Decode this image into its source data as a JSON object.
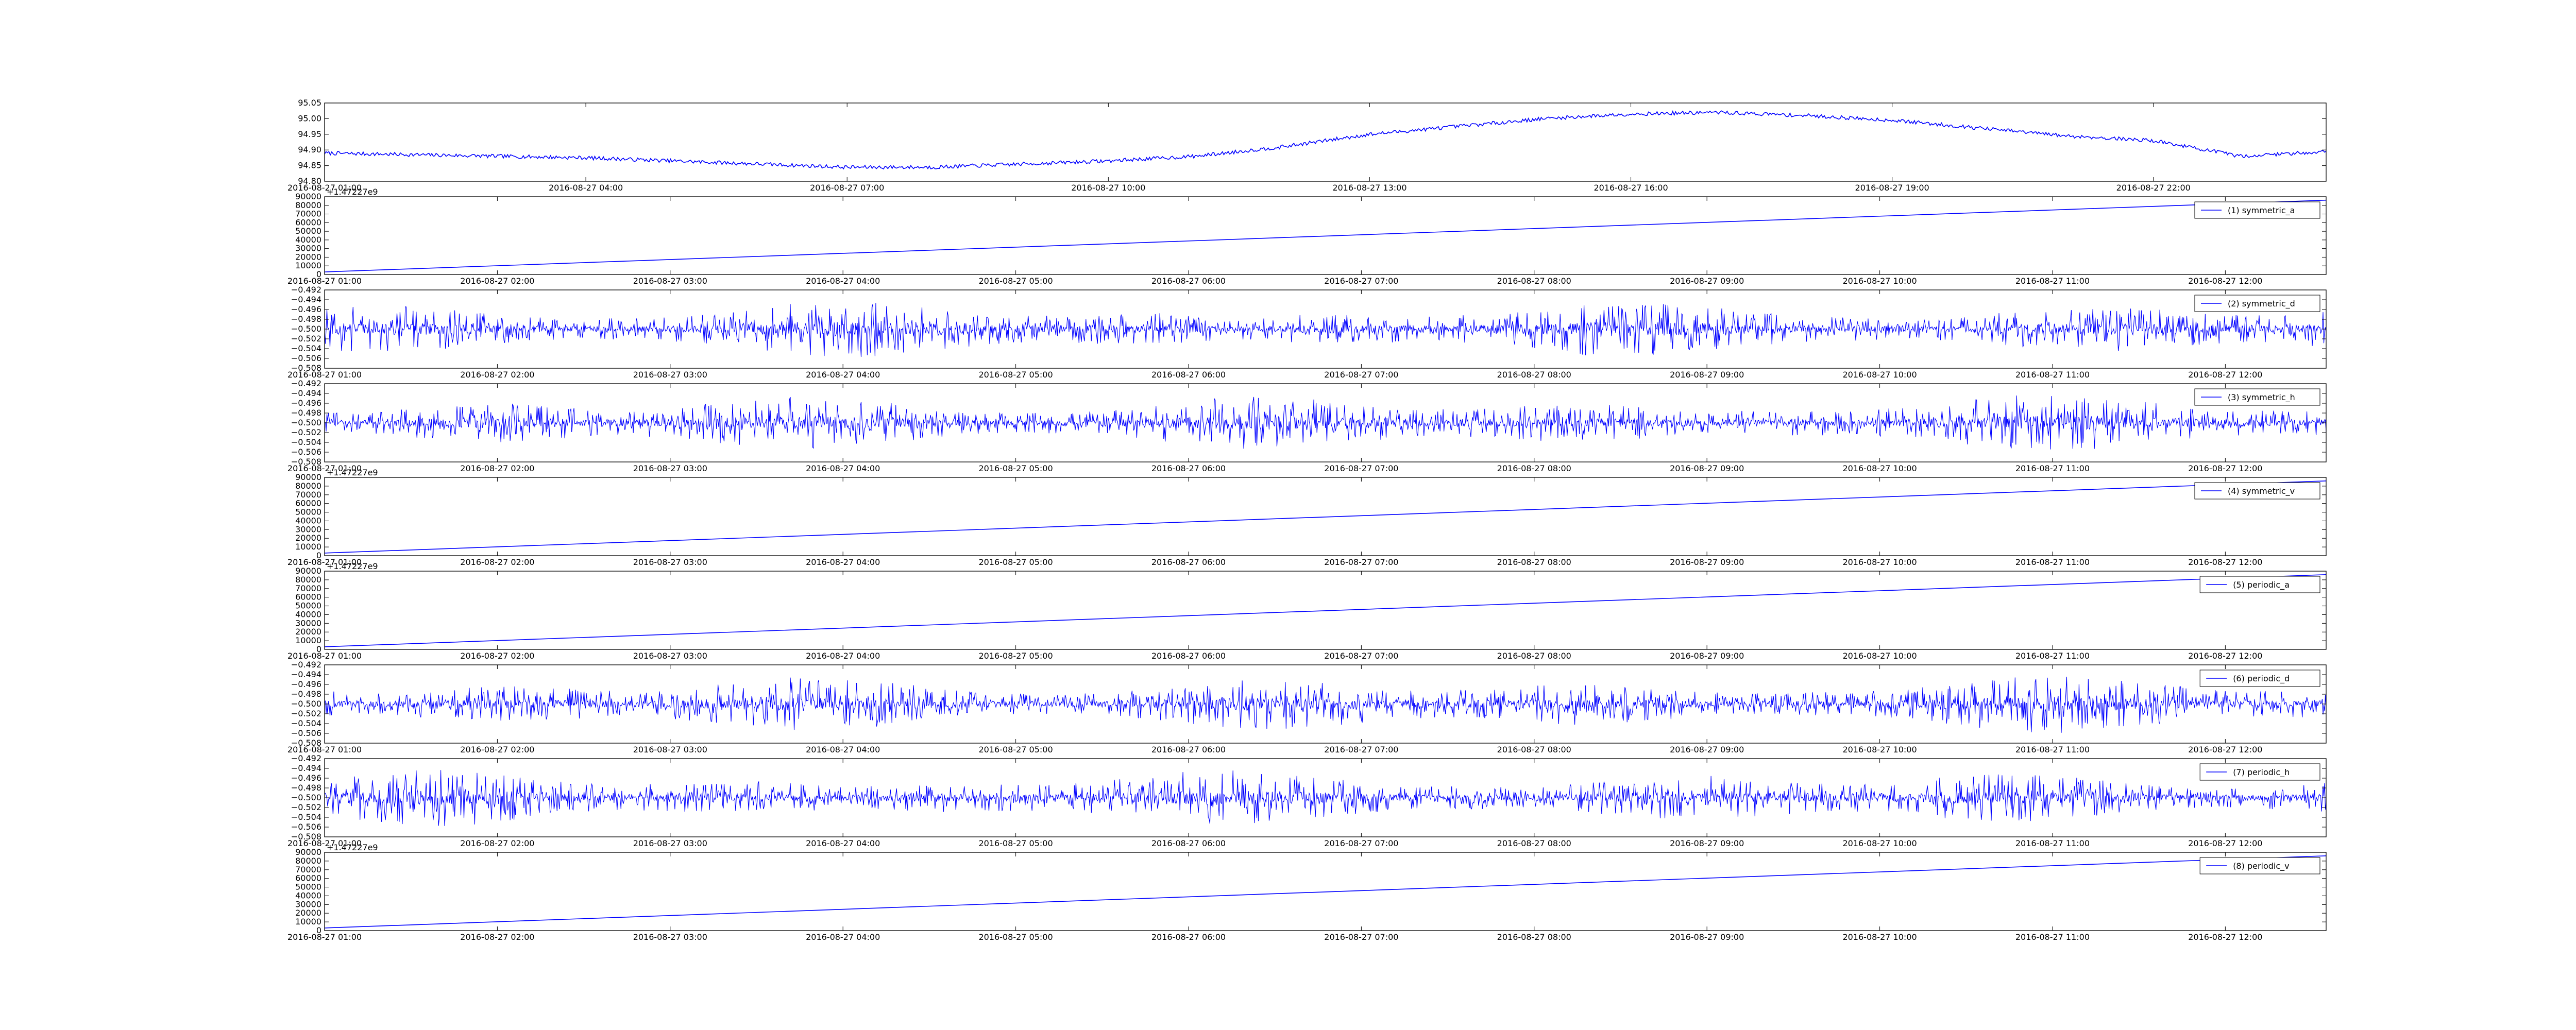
{
  "figure": {
    "colors": {
      "line": "#0000ff",
      "axis": "#000000",
      "background": "#ffffff"
    }
  },
  "chart_data": [
    {
      "type": "line",
      "name": "",
      "ylim": [
        94.8,
        95.05
      ],
      "y_ticks": [
        "94.80",
        "94.85",
        "94.90",
        "94.95",
        "95.00",
        "95.05"
      ],
      "x_ticks": [
        "2016-08-27 01:00",
        "2016-08-27 04:00",
        "2016-08-27 07:00",
        "2016-08-27 10:00",
        "2016-08-27 13:00",
        "2016-08-27 16:00",
        "2016-08-27 19:00",
        "2016-08-27 22:00"
      ],
      "offset_label": "",
      "legend": "",
      "shape": "trend",
      "x": [
        "01:00",
        "02:00",
        "03:00",
        "04:00",
        "05:00",
        "06:00",
        "07:00",
        "08:00",
        "09:00",
        "10:00",
        "11:00",
        "12:00",
        "13:00",
        "14:00",
        "15:00",
        "16:00",
        "17:00",
        "18:00",
        "19:00",
        "20:00",
        "21:00",
        "22:00",
        "23:00",
        "23:59"
      ],
      "values": [
        94.89,
        94.885,
        94.88,
        94.875,
        94.865,
        94.855,
        94.845,
        94.845,
        94.855,
        94.865,
        94.88,
        94.91,
        94.95,
        94.975,
        95.0,
        95.015,
        95.02,
        95.01,
        94.995,
        94.97,
        94.945,
        94.93,
        94.88,
        94.895
      ]
    },
    {
      "type": "line",
      "ylim": [
        0,
        90000
      ],
      "y_ticks": [
        "0",
        "10000",
        "20000",
        "30000",
        "40000",
        "50000",
        "60000",
        "70000",
        "80000",
        "90000"
      ],
      "x_ticks": [
        "2016-08-27 01:00",
        "2016-08-27 02:00",
        "2016-08-27 03:00",
        "2016-08-27 04:00",
        "2016-08-27 05:00",
        "2016-08-27 06:00",
        "2016-08-27 07:00",
        "2016-08-27 08:00",
        "2016-08-27 09:00",
        "2016-08-27 10:00",
        "2016-08-27 11:00",
        "2016-08-27 12:00"
      ],
      "offset_label": "+1.47227e9",
      "legend": "(1) symmetric_a",
      "shape": "ramp",
      "x": [
        "01:00",
        "12:35"
      ],
      "values": [
        3000,
        86000
      ]
    },
    {
      "type": "line",
      "ylim": [
        -0.508,
        -0.492
      ],
      "y_ticks": [
        "−0.508",
        "−0.506",
        "−0.504",
        "−0.502",
        "−0.500",
        "−0.498",
        "−0.496",
        "−0.494",
        "−0.492"
      ],
      "x_ticks": [
        "2016-08-27 01:00",
        "2016-08-27 02:00",
        "2016-08-27 03:00",
        "2016-08-27 04:00",
        "2016-08-27 05:00",
        "2016-08-27 06:00",
        "2016-08-27 07:00",
        "2016-08-27 08:00",
        "2016-08-27 09:00",
        "2016-08-27 10:00",
        "2016-08-27 11:00",
        "2016-08-27 12:00"
      ],
      "offset_label": "",
      "legend": "(2) symmetric_d",
      "shape": "noise",
      "center": -0.5,
      "amplitude": 0.006
    },
    {
      "type": "line",
      "ylim": [
        -0.508,
        -0.492
      ],
      "y_ticks": [
        "−0.508",
        "−0.506",
        "−0.504",
        "−0.502",
        "−0.500",
        "−0.498",
        "−0.496",
        "−0.494",
        "−0.492"
      ],
      "x_ticks": [
        "2016-08-27 01:00",
        "2016-08-27 02:00",
        "2016-08-27 03:00",
        "2016-08-27 04:00",
        "2016-08-27 05:00",
        "2016-08-27 06:00",
        "2016-08-27 07:00",
        "2016-08-27 08:00",
        "2016-08-27 09:00",
        "2016-08-27 10:00",
        "2016-08-27 11:00",
        "2016-08-27 12:00"
      ],
      "offset_label": "",
      "legend": "(3) symmetric_h",
      "shape": "noise",
      "center": -0.5,
      "amplitude": 0.006
    },
    {
      "type": "line",
      "ylim": [
        0,
        90000
      ],
      "y_ticks": [
        "0",
        "10000",
        "20000",
        "30000",
        "40000",
        "50000",
        "60000",
        "70000",
        "80000",
        "90000"
      ],
      "x_ticks": [
        "2016-08-27 01:00",
        "2016-08-27 02:00",
        "2016-08-27 03:00",
        "2016-08-27 04:00",
        "2016-08-27 05:00",
        "2016-08-27 06:00",
        "2016-08-27 07:00",
        "2016-08-27 08:00",
        "2016-08-27 09:00",
        "2016-08-27 10:00",
        "2016-08-27 11:00",
        "2016-08-27 12:00"
      ],
      "offset_label": "+1.47227e9",
      "legend": "(4) symmetric_v",
      "shape": "ramp",
      "x": [
        "01:00",
        "12:35"
      ],
      "values": [
        3000,
        86000
      ]
    },
    {
      "type": "line",
      "ylim": [
        0,
        90000
      ],
      "y_ticks": [
        "0",
        "10000",
        "20000",
        "30000",
        "40000",
        "50000",
        "60000",
        "70000",
        "80000",
        "90000"
      ],
      "x_ticks": [
        "2016-08-27 01:00",
        "2016-08-27 02:00",
        "2016-08-27 03:00",
        "2016-08-27 04:00",
        "2016-08-27 05:00",
        "2016-08-27 06:00",
        "2016-08-27 07:00",
        "2016-08-27 08:00",
        "2016-08-27 09:00",
        "2016-08-27 10:00",
        "2016-08-27 11:00",
        "2016-08-27 12:00"
      ],
      "offset_label": "+1.47227e9",
      "legend": "(5) periodic_a",
      "shape": "ramp",
      "x": [
        "01:00",
        "12:35"
      ],
      "values": [
        3000,
        86000
      ]
    },
    {
      "type": "line",
      "ylim": [
        -0.508,
        -0.492
      ],
      "y_ticks": [
        "−0.508",
        "−0.506",
        "−0.504",
        "−0.502",
        "−0.500",
        "−0.498",
        "−0.496",
        "−0.494",
        "−0.492"
      ],
      "x_ticks": [
        "2016-08-27 01:00",
        "2016-08-27 02:00",
        "2016-08-27 03:00",
        "2016-08-27 04:00",
        "2016-08-27 05:00",
        "2016-08-27 06:00",
        "2016-08-27 07:00",
        "2016-08-27 08:00",
        "2016-08-27 09:00",
        "2016-08-27 10:00",
        "2016-08-27 11:00",
        "2016-08-27 12:00"
      ],
      "offset_label": "",
      "legend": "(6) periodic_d",
      "shape": "noise",
      "center": -0.5,
      "amplitude": 0.006
    },
    {
      "type": "line",
      "ylim": [
        -0.508,
        -0.492
      ],
      "y_ticks": [
        "−0.508",
        "−0.506",
        "−0.504",
        "−0.502",
        "−0.500",
        "−0.498",
        "−0.496",
        "−0.494",
        "−0.492"
      ],
      "x_ticks": [
        "2016-08-27 01:00",
        "2016-08-27 02:00",
        "2016-08-27 03:00",
        "2016-08-27 04:00",
        "2016-08-27 05:00",
        "2016-08-27 06:00",
        "2016-08-27 07:00",
        "2016-08-27 08:00",
        "2016-08-27 09:00",
        "2016-08-27 10:00",
        "2016-08-27 11:00",
        "2016-08-27 12:00"
      ],
      "offset_label": "",
      "legend": "(7) periodic_h",
      "shape": "noise",
      "center": -0.5,
      "amplitude": 0.006
    },
    {
      "type": "line",
      "ylim": [
        0,
        90000
      ],
      "y_ticks": [
        "0",
        "10000",
        "20000",
        "30000",
        "40000",
        "50000",
        "60000",
        "70000",
        "80000",
        "90000"
      ],
      "x_ticks": [
        "2016-08-27 01:00",
        "2016-08-27 02:00",
        "2016-08-27 03:00",
        "2016-08-27 04:00",
        "2016-08-27 05:00",
        "2016-08-27 06:00",
        "2016-08-27 07:00",
        "2016-08-27 08:00",
        "2016-08-27 09:00",
        "2016-08-27 10:00",
        "2016-08-27 11:00",
        "2016-08-27 12:00"
      ],
      "offset_label": "+1.47227e9",
      "legend": "(8) periodic_v",
      "shape": "ramp",
      "x": [
        "01:00",
        "12:35"
      ],
      "values": [
        3000,
        86000
      ]
    }
  ]
}
